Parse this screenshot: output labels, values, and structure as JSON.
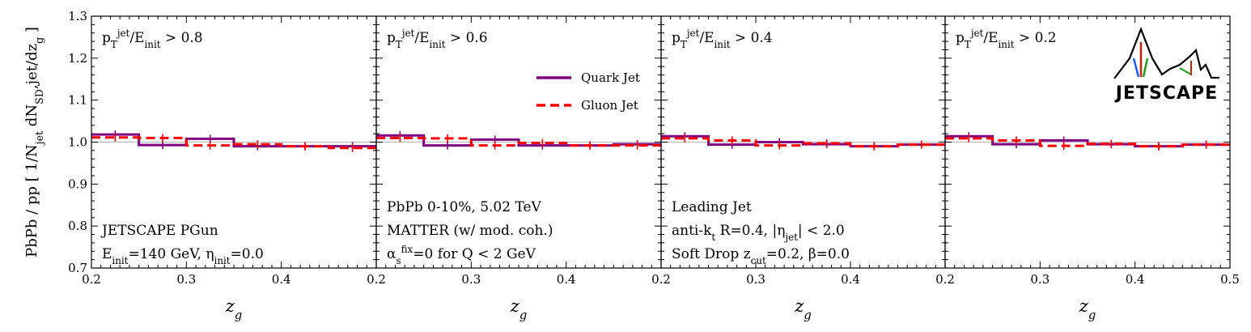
{
  "chart_data": {
    "type": "line",
    "style": "step",
    "ylabel_text": "PbPb / pp [ 1/N_jet dN_SD,jet/dz_g ]",
    "ylim": [
      0.7,
      1.3
    ],
    "yticks": [
      "0.7",
      "0.8",
      "0.9",
      "1.0",
      "1.1",
      "1.2",
      "1.3"
    ],
    "xlim": [
      0.2,
      0.5
    ],
    "reference_line": 1.0,
    "legend": [
      "Quark Jet",
      "Gluon Jet"
    ],
    "legend_placement": "top-right of second panel",
    "panels": [
      {
        "xlabel": "z_g",
        "cut_label": "p_T^jet/E_init > 0.8",
        "text_lines": [
          "JETSCAPE PGun",
          "E_init=140 GeV, η_init=0.0"
        ],
        "xticks": [
          "0.2",
          "0.3",
          "0.4"
        ],
        "bins": [
          0.2,
          0.25,
          0.3,
          0.35,
          0.4,
          0.45,
          0.5
        ],
        "series": [
          {
            "name": "Quark Jet",
            "color": "#800080",
            "dash": "solid",
            "values": [
              1.018,
              0.993,
              1.008,
              0.99,
              0.99,
              0.99
            ]
          },
          {
            "name": "Gluon Jet",
            "color": "#ff0000",
            "dash": "dashed",
            "values": [
              1.011,
              1.01,
              0.992,
              0.995,
              0.99,
              0.986
            ]
          }
        ]
      },
      {
        "xlabel": "z_g",
        "cut_label": "p_T^jet/E_init > 0.6",
        "text_lines": [
          "PbPb 0-10%, 5.02 TeV",
          "MATTER (w/ mod. coh.)",
          "α_s^fix=0 for Q < 2 GeV"
        ],
        "xticks": [
          "0.2",
          "0.3",
          "0.4"
        ],
        "bins": [
          0.2,
          0.25,
          0.3,
          0.35,
          0.4,
          0.45,
          0.5
        ],
        "series": [
          {
            "name": "Quark Jet",
            "color": "#800080",
            "dash": "solid",
            "values": [
              1.016,
              0.992,
              1.006,
              0.992,
              0.992,
              0.995
            ]
          },
          {
            "name": "Gluon Jet",
            "color": "#ff0000",
            "dash": "dashed",
            "values": [
              1.01,
              1.009,
              0.992,
              0.998,
              0.992,
              0.992
            ]
          }
        ]
      },
      {
        "xlabel": "z_g",
        "cut_label": "p_T^jet/E_init > 0.4",
        "text_lines": [
          "Leading Jet",
          "anti-k_t R=0.4, |η_jet| < 2.0",
          "Soft Drop z_cut=0.2, β=0.0"
        ],
        "xticks": [
          "0.2",
          "0.3",
          "0.4"
        ],
        "bins": [
          0.2,
          0.25,
          0.3,
          0.35,
          0.4,
          0.45,
          0.5
        ],
        "series": [
          {
            "name": "Quark Jet",
            "color": "#800080",
            "dash": "solid",
            "values": [
              1.014,
              0.994,
              1.0,
              0.995,
              0.99,
              0.994
            ]
          },
          {
            "name": "Gluon Jet",
            "color": "#ff0000",
            "dash": "dashed",
            "values": [
              1.009,
              1.004,
              0.992,
              0.997,
              0.99,
              0.994
            ]
          }
        ]
      },
      {
        "xlabel": "z_g",
        "cut_label": "p_T^jet/E_init > 0.2",
        "text_lines": [],
        "xticks": [
          "0.2",
          "0.3",
          "0.4",
          "0.5"
        ],
        "bins": [
          0.2,
          0.25,
          0.3,
          0.35,
          0.4,
          0.45,
          0.5
        ],
        "series": [
          {
            "name": "Quark Jet",
            "color": "#800080",
            "dash": "solid",
            "values": [
              1.014,
              0.995,
              1.004,
              0.995,
              0.99,
              0.994
            ]
          },
          {
            "name": "Gluon Jet",
            "color": "#ff0000",
            "dash": "dashed",
            "values": [
              1.009,
              1.004,
              0.991,
              0.996,
              0.99,
              0.994
            ]
          }
        ]
      }
    ]
  },
  "logo": {
    "text": "JETSCAPE"
  }
}
